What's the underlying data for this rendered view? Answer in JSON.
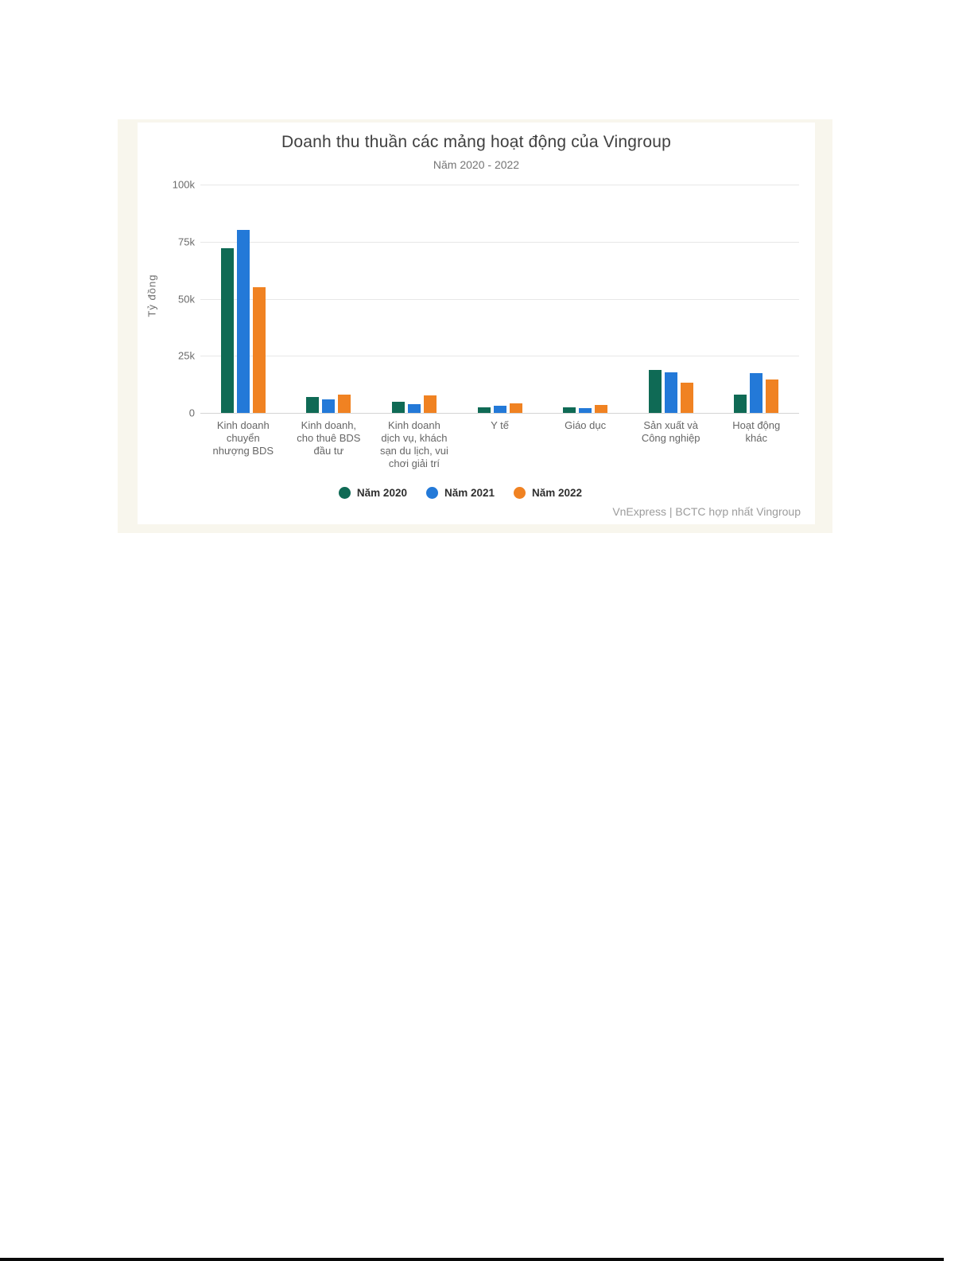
{
  "page": {
    "background_color": "#ffffff",
    "frame_color": "#f8f6ed",
    "card_color": "#ffffff",
    "bottom_bar_color": "#0a0a0a"
  },
  "chart": {
    "title": "Doanh thu thuần các mảng hoạt động của Vingroup",
    "subtitle": "Năm 2020 - 2022",
    "y_axis_title": "Tỷ đồng",
    "y_ticks": [
      "100k",
      "75k",
      "50k",
      "25k",
      "0"
    ],
    "source": "VnExpress | BCTC hợp nhất Vingroup",
    "gridline_color": "#e7e7e7",
    "baseline_color": "#d4d4d4"
  },
  "chart_data": {
    "type": "bar",
    "title": "Doanh thu thuần các mảng hoạt động của Vingroup",
    "subtitle": "Năm 2020 - 2022",
    "xlabel": "",
    "ylabel": "Tỷ đồng",
    "ylim": [
      0,
      100000
    ],
    "y_tick_values": [
      0,
      25000,
      50000,
      75000,
      100000
    ],
    "grid": true,
    "legend_position": "bottom",
    "source": "VnExpress | BCTC hợp nhất Vingroup",
    "categories": [
      "Kinh doanh chuyển nhượng BDS",
      "Kinh doanh, cho thuê BDS đầu tư",
      "Kinh doanh dịch vụ, khách sạn du lịch, vui chơi giải trí",
      "Y tế",
      "Giáo dục",
      "Sản xuất và Công nghiệp",
      "Hoạt động khác"
    ],
    "categories_display": [
      "Kinh doanh\nchuyển\nnhượng BDS",
      "Kinh doanh,\ncho thuê BDS\nđầu tư",
      "Kinh doanh\ndịch vụ, khách\nsạn du lịch, vui\nchơi giải trí",
      "Y tế",
      "Giáo dục",
      "Sản xuất và\nCông nghiệp",
      "Hoạt động\nkhác"
    ],
    "series": [
      {
        "name": "Năm 2020",
        "color": "#0f6a55",
        "values": [
          72000,
          7000,
          4800,
          2600,
          2300,
          18800,
          8100
        ]
      },
      {
        "name": "Năm 2021",
        "color": "#2379d8",
        "values": [
          80000,
          6100,
          4000,
          3100,
          2200,
          17900,
          17500
        ]
      },
      {
        "name": "Năm 2022",
        "color": "#f08222",
        "values": [
          55000,
          7900,
          7600,
          4300,
          3500,
          13300,
          14700
        ]
      }
    ]
  }
}
